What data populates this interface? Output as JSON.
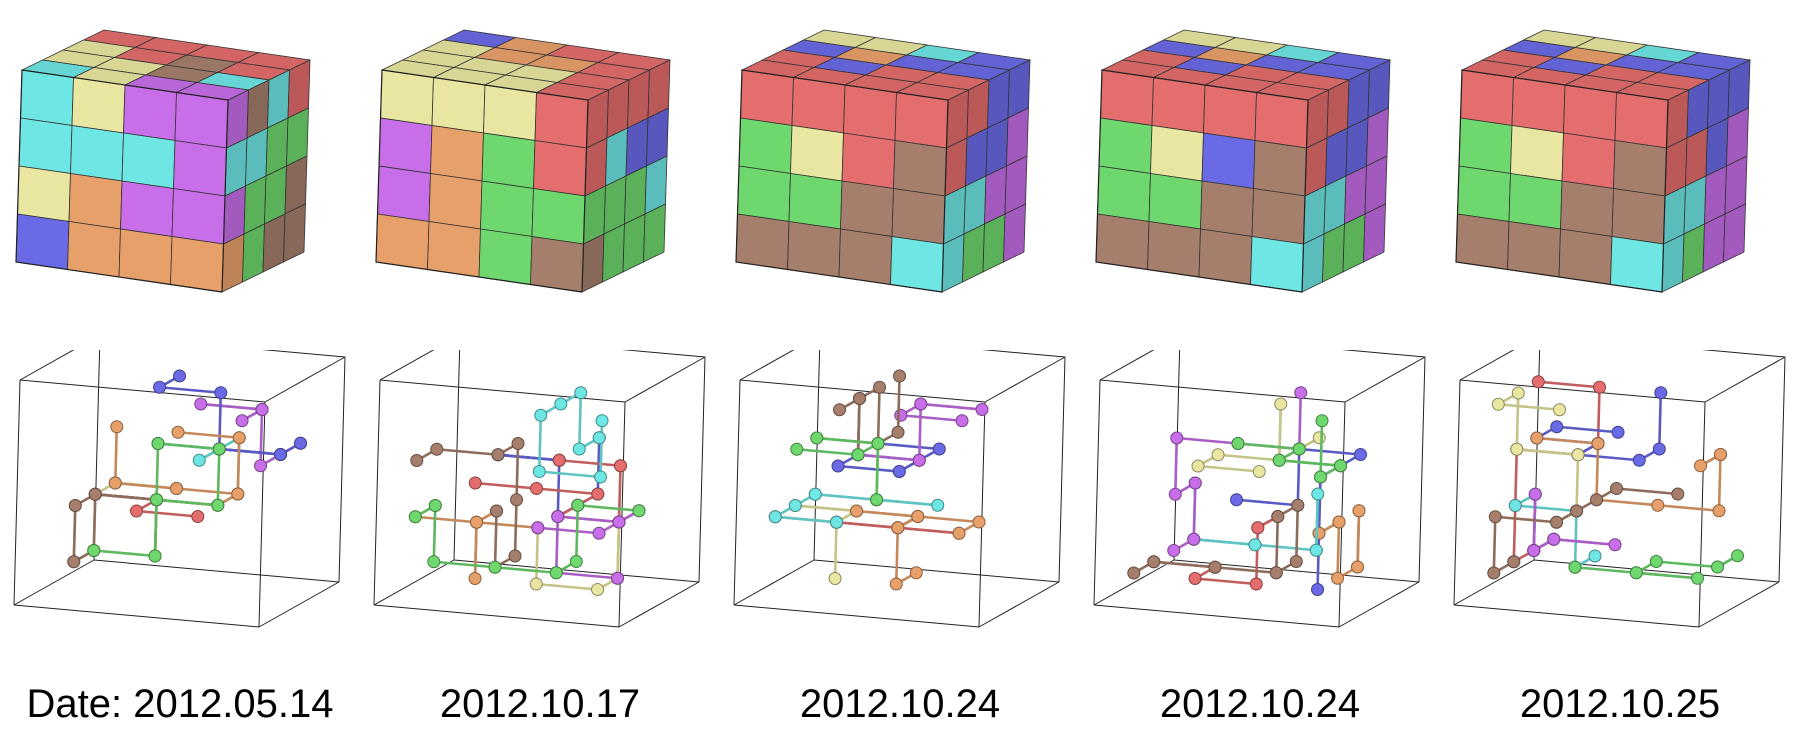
{
  "colors": {
    "red": "#e46d6d",
    "blue": "#6a6ae6",
    "yellow": "#e8e6a0",
    "cyan": "#6ee6e4",
    "purple": "#c76ee8",
    "orange": "#e8a06a",
    "green": "#6ed86e",
    "brown": "#a67f6c"
  },
  "panels": [
    {
      "date": "Date: 2012.05.14",
      "cube": {
        "front": [
          [
            "cyan",
            "yellow",
            "purple",
            "purple"
          ],
          [
            "cyan",
            "cyan",
            "cyan",
            "purple"
          ],
          [
            "yellow",
            "orange",
            "purple",
            "purple"
          ],
          [
            "blue",
            "orange",
            "orange",
            "orange"
          ]
        ],
        "top": [
          [
            "red",
            "red",
            "red",
            "red"
          ],
          [
            "yellow",
            "red",
            "brown",
            "red"
          ],
          [
            "yellow",
            "yellow",
            "brown",
            "cyan"
          ],
          [
            "cyan",
            "yellow",
            "purple",
            "purple"
          ]
        ],
        "right": [
          [
            "purple",
            "brown",
            "cyan",
            "red"
          ],
          [
            "cyan",
            "cyan",
            "green",
            "green"
          ],
          [
            "purple",
            "green",
            "green",
            "brown"
          ],
          [
            "orange",
            "green",
            "brown",
            "brown"
          ]
        ]
      },
      "graph_colors": [
        "cyan",
        "yellow",
        "red",
        "brown",
        "purple",
        "blue",
        "orange",
        "green"
      ]
    },
    {
      "date": "2012.10.17",
      "cube": {
        "front": [
          [
            "yellow",
            "yellow",
            "yellow",
            "red"
          ],
          [
            "purple",
            "orange",
            "green",
            "red"
          ],
          [
            "purple",
            "orange",
            "green",
            "green"
          ],
          [
            "orange",
            "orange",
            "green",
            "brown"
          ]
        ],
        "top": [
          [
            "blue",
            "orange",
            "red",
            "red"
          ],
          [
            "yellow",
            "orange",
            "orange",
            "red"
          ],
          [
            "yellow",
            "yellow",
            "yellow",
            "red"
          ],
          [
            "yellow",
            "yellow",
            "yellow",
            "red"
          ]
        ],
        "right": [
          [
            "red",
            "red",
            "red",
            "red"
          ],
          [
            "red",
            "cyan",
            "blue",
            "blue"
          ],
          [
            "green",
            "green",
            "green",
            "cyan"
          ],
          [
            "brown",
            "green",
            "green",
            "green"
          ]
        ]
      },
      "graph_colors": [
        "yellow",
        "blue",
        "orange",
        "red",
        "purple",
        "brown",
        "cyan",
        "green"
      ]
    },
    {
      "date": "2012.10.24",
      "cube": {
        "front": [
          [
            "red",
            "red",
            "red",
            "red"
          ],
          [
            "green",
            "yellow",
            "red",
            "brown"
          ],
          [
            "green",
            "green",
            "brown",
            "brown"
          ],
          [
            "brown",
            "brown",
            "brown",
            "cyan"
          ]
        ],
        "top": [
          [
            "yellow",
            "yellow",
            "cyan",
            "blue"
          ],
          [
            "blue",
            "orange",
            "blue",
            "blue"
          ],
          [
            "red",
            "blue",
            "red",
            "red"
          ],
          [
            "red",
            "red",
            "red",
            "red"
          ]
        ],
        "right": [
          [
            "red",
            "red",
            "blue",
            "blue"
          ],
          [
            "red",
            "blue",
            "blue",
            "purple"
          ],
          [
            "cyan",
            "cyan",
            "purple",
            "purple"
          ],
          [
            "cyan",
            "green",
            "green",
            "purple"
          ]
        ]
      },
      "graph_colors": [
        "red",
        "blue",
        "yellow",
        "orange",
        "cyan",
        "purple",
        "brown",
        "green"
      ]
    },
    {
      "date": "2012.10.24",
      "cube": {
        "front": [
          [
            "red",
            "red",
            "red",
            "red"
          ],
          [
            "green",
            "yellow",
            "blue",
            "brown"
          ],
          [
            "green",
            "green",
            "brown",
            "brown"
          ],
          [
            "brown",
            "brown",
            "brown",
            "cyan"
          ]
        ],
        "top": [
          [
            "yellow",
            "yellow",
            "cyan",
            "blue"
          ],
          [
            "blue",
            "orange",
            "blue",
            "blue"
          ],
          [
            "red",
            "blue",
            "red",
            "red"
          ],
          [
            "red",
            "red",
            "red",
            "red"
          ]
        ],
        "right": [
          [
            "red",
            "red",
            "blue",
            "blue"
          ],
          [
            "red",
            "blue",
            "blue",
            "purple"
          ],
          [
            "cyan",
            "cyan",
            "purple",
            "purple"
          ],
          [
            "cyan",
            "green",
            "green",
            "purple"
          ]
        ]
      },
      "graph_colors": [
        "red",
        "yellow",
        "blue",
        "orange",
        "cyan",
        "purple",
        "brown",
        "green"
      ]
    },
    {
      "date": "2012.10.25",
      "cube": {
        "front": [
          [
            "red",
            "red",
            "red",
            "red"
          ],
          [
            "green",
            "yellow",
            "red",
            "brown"
          ],
          [
            "green",
            "green",
            "brown",
            "brown"
          ],
          [
            "brown",
            "brown",
            "brown",
            "cyan"
          ]
        ],
        "top": [
          [
            "yellow",
            "yellow",
            "cyan",
            "blue"
          ],
          [
            "blue",
            "orange",
            "blue",
            "blue"
          ],
          [
            "red",
            "blue",
            "red",
            "red"
          ],
          [
            "red",
            "red",
            "red",
            "red"
          ]
        ],
        "right": [
          [
            "red",
            "blue",
            "blue",
            "blue"
          ],
          [
            "red",
            "red",
            "blue",
            "purple"
          ],
          [
            "cyan",
            "cyan",
            "purple",
            "purple"
          ],
          [
            "cyan",
            "green",
            "purple",
            "purple"
          ]
        ]
      },
      "graph_colors": [
        "red",
        "blue",
        "yellow",
        "orange",
        "cyan",
        "purple",
        "brown",
        "green"
      ]
    }
  ]
}
